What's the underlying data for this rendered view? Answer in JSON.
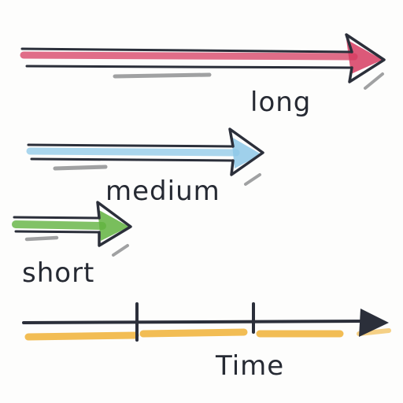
{
  "diagram": {
    "arrows": [
      {
        "id": "long",
        "label": "long",
        "color": "#d63c62"
      },
      {
        "id": "medium",
        "label": "medium",
        "color": "#8ec8e8"
      },
      {
        "id": "short",
        "label": "short",
        "color": "#62b340"
      }
    ],
    "timeline": {
      "label": "Time",
      "highlight_color": "#f0b236"
    }
  }
}
